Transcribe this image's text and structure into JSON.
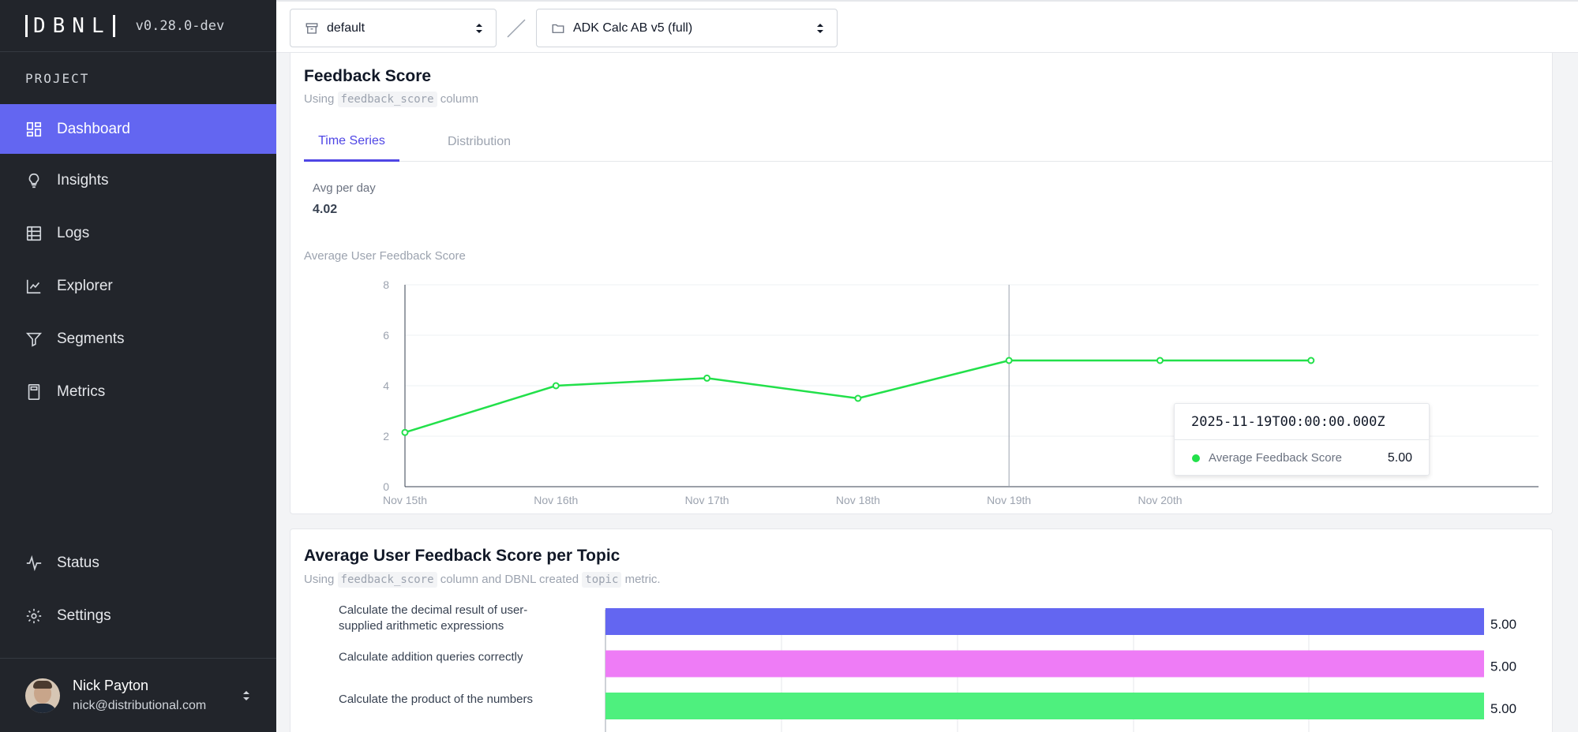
{
  "sidebar": {
    "logo": "DBNL",
    "version": "v0.28.0-dev",
    "section_label": "PROJECT",
    "items": [
      {
        "label": "Dashboard",
        "icon": "dashboard-icon"
      },
      {
        "label": "Insights",
        "icon": "lightbulb-icon"
      },
      {
        "label": "Logs",
        "icon": "table-icon"
      },
      {
        "label": "Explorer",
        "icon": "line-chart-icon"
      },
      {
        "label": "Segments",
        "icon": "filter-icon"
      },
      {
        "label": "Metrics",
        "icon": "calculator-icon"
      }
    ],
    "bottom_items": [
      {
        "label": "Status",
        "icon": "activity-icon"
      },
      {
        "label": "Settings",
        "icon": "gear-icon"
      }
    ],
    "user": {
      "name": "Nick Payton",
      "email": "nick@distributional.com"
    }
  },
  "topbar": {
    "namespace": "default",
    "project": "ADK Calc AB v5 (full)"
  },
  "feedback_card": {
    "title": "Feedback Score",
    "sub_prefix": "Using",
    "sub_code": "feedback_score",
    "sub_suffix": "column",
    "tabs": [
      "Time Series",
      "Distribution"
    ],
    "kpi_label": "Avg per day",
    "kpi_value": "4.02",
    "chart_title": "Average User Feedback Score",
    "tooltip": {
      "title": "2025-11-19T00:00:00.000Z",
      "series": "Average Feedback Score",
      "value": "5.00"
    }
  },
  "topic_card": {
    "title": "Average User Feedback Score per Topic",
    "sub_prefix": "Using",
    "sub_code": "feedback_score",
    "sub_mid": "column and DBNL created",
    "sub_code2": "topic",
    "sub_suffix": "metric."
  },
  "colors": {
    "accent": "#6366f1",
    "line": "#22e04a",
    "bar1": "#6366f1",
    "bar2": "#ee7cf6",
    "bar3": "#4ef07e"
  },
  "chart_data": [
    {
      "type": "line",
      "title": "Average User Feedback Score",
      "x": [
        "Nov 15th",
        "Nov 16th",
        "Nov 17th",
        "Nov 18th",
        "Nov 19th",
        "Nov 20th",
        ""
      ],
      "series": [
        {
          "name": "Average Feedback Score",
          "values": [
            2.15,
            4.0,
            4.3,
            3.5,
            5.0,
            5.0,
            5.0
          ]
        }
      ],
      "yticks": [
        "0",
        "2",
        "4",
        "6",
        "8"
      ],
      "ylim": [
        0,
        8
      ],
      "grid": true
    },
    {
      "type": "bar",
      "orientation": "horizontal",
      "categories": [
        [
          "Calculate the decimal result of user-",
          "supplied arithmetic expressions"
        ],
        [
          "Calculate addition queries correctly"
        ],
        [
          "Calculate the product of the numbers"
        ]
      ],
      "values": [
        5.0,
        5.0,
        5.0
      ],
      "value_labels": [
        "5.00",
        "5.00",
        "5.00"
      ],
      "xlim": [
        0,
        5
      ]
    }
  ]
}
